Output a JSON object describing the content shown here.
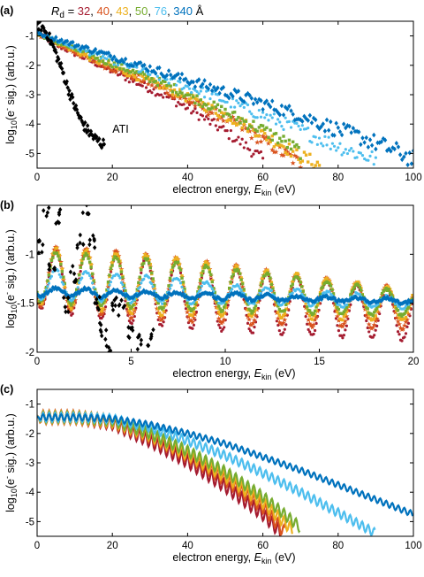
{
  "figure": {
    "legend": {
      "label_main": "R",
      "label_sub": "d",
      "equals": " = ",
      "unit": " Å",
      "entries": [
        {
          "text": "32",
          "color": "#a51c30"
        },
        {
          "text": "40",
          "color": "#d9531e"
        },
        {
          "text": "43",
          "color": "#edb120"
        },
        {
          "text": "50",
          "color": "#77ac30"
        },
        {
          "text": "76",
          "color": "#4dbeee"
        },
        {
          "text": "340",
          "color": "#0072bd"
        }
      ],
      "separator": ", "
    },
    "ylabel": {
      "pre": "log",
      "sub": "10",
      "mid": "(e",
      "sup": "-",
      "post": " sig.) (arb.u.)"
    },
    "xlabel": {
      "pre": "electron energy, ",
      "italic": "E",
      "sub": "kin",
      "post": " (eV)"
    }
  },
  "chart_data": [
    {
      "panel_label": "(a)",
      "type": "scatter",
      "xlim": [
        0,
        100
      ],
      "ylim": [
        -5.5,
        -0.5
      ],
      "xticks": [
        0,
        20,
        40,
        60,
        80,
        100
      ],
      "yticks": [
        -1,
        -2,
        -3,
        -4,
        -5
      ],
      "annotation": "ATI",
      "series": [
        {
          "name": "32",
          "color": "#a51c30",
          "marker": "dot",
          "x": [
            0,
            5,
            10,
            15,
            20,
            25,
            30,
            35,
            40,
            45,
            50,
            55,
            60
          ],
          "y": [
            -0.9,
            -1.3,
            -1.6,
            -1.9,
            -2.2,
            -2.5,
            -2.8,
            -3.1,
            -3.45,
            -3.85,
            -4.25,
            -4.7,
            -5.2
          ]
        },
        {
          "name": "40",
          "color": "#d9531e",
          "marker": "star",
          "x": [
            0,
            5,
            10,
            15,
            20,
            25,
            30,
            35,
            40,
            45,
            50,
            55,
            60,
            65,
            70
          ],
          "y": [
            -0.9,
            -1.25,
            -1.55,
            -1.85,
            -2.1,
            -2.35,
            -2.6,
            -2.9,
            -3.2,
            -3.5,
            -3.8,
            -4.15,
            -4.55,
            -4.95,
            -5.35
          ]
        },
        {
          "name": "43",
          "color": "#edb120",
          "marker": "square",
          "x": [
            0,
            5,
            10,
            15,
            20,
            25,
            30,
            35,
            40,
            45,
            50,
            55,
            60,
            65,
            70,
            75
          ],
          "y": [
            -0.9,
            -1.2,
            -1.5,
            -1.8,
            -2.05,
            -2.3,
            -2.55,
            -2.8,
            -3.1,
            -3.4,
            -3.7,
            -4.0,
            -4.35,
            -4.7,
            -5.1,
            -5.4
          ]
        },
        {
          "name": "50",
          "color": "#77ac30",
          "marker": "square",
          "x": [
            0,
            5,
            10,
            15,
            20,
            25,
            30,
            35,
            40,
            45,
            50,
            55,
            60,
            65,
            70
          ],
          "y": [
            -0.9,
            -1.2,
            -1.45,
            -1.7,
            -1.95,
            -2.2,
            -2.45,
            -2.7,
            -3.0,
            -3.3,
            -3.6,
            -3.9,
            -4.2,
            -4.55,
            -4.95
          ]
        },
        {
          "name": "76",
          "color": "#4dbeee",
          "marker": "dot",
          "x": [
            0,
            5,
            10,
            15,
            20,
            25,
            30,
            35,
            40,
            45,
            50,
            55,
            60,
            65,
            70,
            75,
            80,
            85,
            90
          ],
          "y": [
            -0.9,
            -1.15,
            -1.4,
            -1.6,
            -1.85,
            -2.05,
            -2.3,
            -2.5,
            -2.75,
            -2.95,
            -3.2,
            -3.45,
            -3.7,
            -3.95,
            -4.2,
            -4.5,
            -4.75,
            -5.0,
            -5.2
          ]
        },
        {
          "name": "340",
          "color": "#0072bd",
          "marker": "diamond",
          "x": [
            0,
            5,
            10,
            15,
            20,
            25,
            30,
            35,
            40,
            45,
            50,
            55,
            60,
            65,
            70,
            75,
            80,
            85,
            90,
            95,
            100
          ],
          "y": [
            -0.9,
            -1.1,
            -1.3,
            -1.5,
            -1.7,
            -1.9,
            -2.1,
            -2.3,
            -2.5,
            -2.7,
            -2.9,
            -3.1,
            -3.3,
            -3.5,
            -3.7,
            -3.95,
            -4.2,
            -4.4,
            -4.65,
            -4.9,
            -5.2
          ]
        },
        {
          "name": "ATI",
          "color": "#000000",
          "marker": "diamond",
          "x": [
            0,
            1,
            2,
            3,
            4,
            5,
            6,
            7,
            8,
            9,
            10,
            11,
            12,
            13,
            14,
            15,
            16,
            17,
            18
          ],
          "y": [
            -0.6,
            -0.65,
            -0.8,
            -1.0,
            -1.3,
            -1.6,
            -1.95,
            -2.3,
            -2.7,
            -3.05,
            -3.4,
            -3.7,
            -3.95,
            -4.15,
            -4.3,
            -4.45,
            -4.55,
            -4.65,
            -4.7
          ]
        }
      ]
    },
    {
      "panel_label": "(b)",
      "type": "scatter",
      "xlim": [
        0,
        20
      ],
      "ylim": [
        -2,
        -0.5
      ],
      "xticks": [
        0,
        5,
        10,
        15,
        20
      ],
      "yticks": [
        -1,
        -1.5,
        -2
      ],
      "oscillation_period_eV": 1.6,
      "series": [
        {
          "name": "32",
          "color": "#a51c30",
          "marker": "dot",
          "x": [
            0,
            2,
            4,
            6,
            8,
            10,
            12,
            14,
            16,
            18,
            20
          ],
          "mean": [
            -1.25,
            -1.3,
            -1.34,
            -1.38,
            -1.42,
            -1.46,
            -1.5,
            -1.53,
            -1.56,
            -1.6,
            -1.64
          ],
          "amplitude": [
            0.3,
            0.32,
            0.34,
            0.34,
            0.34,
            0.32,
            0.31,
            0.3,
            0.28,
            0.26,
            0.24
          ]
        },
        {
          "name": "40",
          "color": "#d9531e",
          "marker": "star",
          "x": [
            0,
            2,
            4,
            6,
            8,
            10,
            12,
            14,
            16,
            18,
            20
          ],
          "mean": [
            -1.22,
            -1.26,
            -1.3,
            -1.33,
            -1.37,
            -1.4,
            -1.44,
            -1.47,
            -1.5,
            -1.53,
            -1.56
          ],
          "amplitude": [
            0.3,
            0.32,
            0.33,
            0.33,
            0.32,
            0.3,
            0.28,
            0.26,
            0.24,
            0.22,
            0.2
          ]
        },
        {
          "name": "43",
          "color": "#edb120",
          "marker": "square",
          "x": [
            0,
            2,
            4,
            6,
            8,
            10,
            12,
            14,
            16,
            18,
            20
          ],
          "mean": [
            -1.22,
            -1.25,
            -1.28,
            -1.31,
            -1.34,
            -1.37,
            -1.4,
            -1.43,
            -1.46,
            -1.49,
            -1.52
          ],
          "amplitude": [
            0.28,
            0.3,
            0.3,
            0.3,
            0.28,
            0.26,
            0.24,
            0.22,
            0.2,
            0.18,
            0.16
          ]
        },
        {
          "name": "50",
          "color": "#77ac30",
          "marker": "square",
          "x": [
            0,
            2,
            4,
            6,
            8,
            10,
            12,
            14,
            16,
            18,
            20
          ],
          "mean": [
            -1.22,
            -1.25,
            -1.28,
            -1.3,
            -1.33,
            -1.36,
            -1.39,
            -1.42,
            -1.45,
            -1.48,
            -1.51
          ],
          "amplitude": [
            0.25,
            0.26,
            0.26,
            0.25,
            0.24,
            0.22,
            0.2,
            0.18,
            0.16,
            0.14,
            0.12
          ]
        },
        {
          "name": "76",
          "color": "#4dbeee",
          "marker": "dot",
          "x": [
            0,
            2,
            4,
            6,
            8,
            10,
            12,
            14,
            16,
            18,
            20
          ],
          "mean": [
            -1.3,
            -1.32,
            -1.34,
            -1.36,
            -1.38,
            -1.4,
            -1.42,
            -1.44,
            -1.46,
            -1.48,
            -1.5
          ],
          "amplitude": [
            0.15,
            0.15,
            0.14,
            0.13,
            0.12,
            0.1,
            0.09,
            0.08,
            0.07,
            0.06,
            0.05
          ]
        },
        {
          "name": "340",
          "color": "#0072bd",
          "marker": "diamond",
          "x": [
            0,
            2,
            4,
            6,
            8,
            10,
            12,
            14,
            16,
            18,
            20
          ],
          "mean": [
            -1.38,
            -1.39,
            -1.4,
            -1.41,
            -1.42,
            -1.43,
            -1.44,
            -1.45,
            -1.46,
            -1.47,
            -1.48
          ],
          "amplitude": [
            0.04,
            0.04,
            0.04,
            0.03,
            0.03,
            0.03,
            0.03,
            0.02,
            0.02,
            0.02,
            0.02
          ]
        },
        {
          "name": "ATI",
          "color": "#000000",
          "marker": "diamond",
          "x": [
            0.2,
            0.5,
            0.8,
            1.1,
            1.5,
            1.9,
            2.3,
            2.6,
            2.9,
            3.2,
            3.5,
            3.8,
            4.1,
            4.5,
            5.0,
            5.5,
            6.0
          ],
          "y": [
            -0.9,
            -0.55,
            -1.1,
            -0.6,
            -1.5,
            -1.2,
            -0.85,
            -0.5,
            -0.85,
            -1.5,
            -1.75,
            -1.95,
            -1.5,
            -1.55,
            -1.8,
            -1.9,
            -1.85
          ]
        }
      ]
    },
    {
      "panel_label": "(c)",
      "type": "line",
      "xlim": [
        0,
        100
      ],
      "ylim": [
        -5.5,
        -0.5
      ],
      "xticks": [
        0,
        20,
        40,
        60,
        80,
        100
      ],
      "yticks": [
        -1,
        -2,
        -3,
        -4,
        -5
      ],
      "oscillation_period_eV": 1.6,
      "series": [
        {
          "name": "32",
          "color": "#a51c30",
          "x": [
            0,
            10,
            20,
            30,
            40,
            50,
            60,
            65
          ],
          "y": [
            -1.45,
            -1.45,
            -1.65,
            -2.25,
            -2.95,
            -3.8,
            -4.75,
            -5.4
          ],
          "amplitude": 0.22
        },
        {
          "name": "40",
          "color": "#d9531e",
          "x": [
            0,
            10,
            20,
            30,
            40,
            50,
            60,
            66
          ],
          "y": [
            -1.45,
            -1.45,
            -1.6,
            -2.1,
            -2.75,
            -3.55,
            -4.5,
            -5.4
          ],
          "amplitude": 0.22
        },
        {
          "name": "43",
          "color": "#edb120",
          "x": [
            0,
            10,
            20,
            30,
            40,
            50,
            60,
            68
          ],
          "y": [
            -1.45,
            -1.45,
            -1.58,
            -2.05,
            -2.7,
            -3.45,
            -4.35,
            -5.3
          ],
          "amplitude": 0.2
        },
        {
          "name": "50",
          "color": "#77ac30",
          "x": [
            0,
            10,
            20,
            30,
            40,
            50,
            60,
            70
          ],
          "y": [
            -1.45,
            -1.45,
            -1.55,
            -2.0,
            -2.6,
            -3.3,
            -4.15,
            -5.2
          ],
          "amplitude": 0.18
        },
        {
          "name": "76",
          "color": "#4dbeee",
          "x": [
            0,
            10,
            20,
            30,
            40,
            50,
            60,
            70,
            80,
            90
          ],
          "y": [
            -1.45,
            -1.45,
            -1.5,
            -1.8,
            -2.25,
            -2.75,
            -3.35,
            -4.0,
            -4.7,
            -5.4
          ],
          "amplitude": 0.15
        },
        {
          "name": "340",
          "color": "#0072bd",
          "x": [
            0,
            10,
            20,
            30,
            40,
            50,
            60,
            70,
            80,
            90,
            100
          ],
          "y": [
            -1.45,
            -1.45,
            -1.5,
            -1.7,
            -2.0,
            -2.35,
            -2.8,
            -3.25,
            -3.75,
            -4.25,
            -4.75
          ],
          "amplitude": 0.1
        }
      ]
    }
  ]
}
